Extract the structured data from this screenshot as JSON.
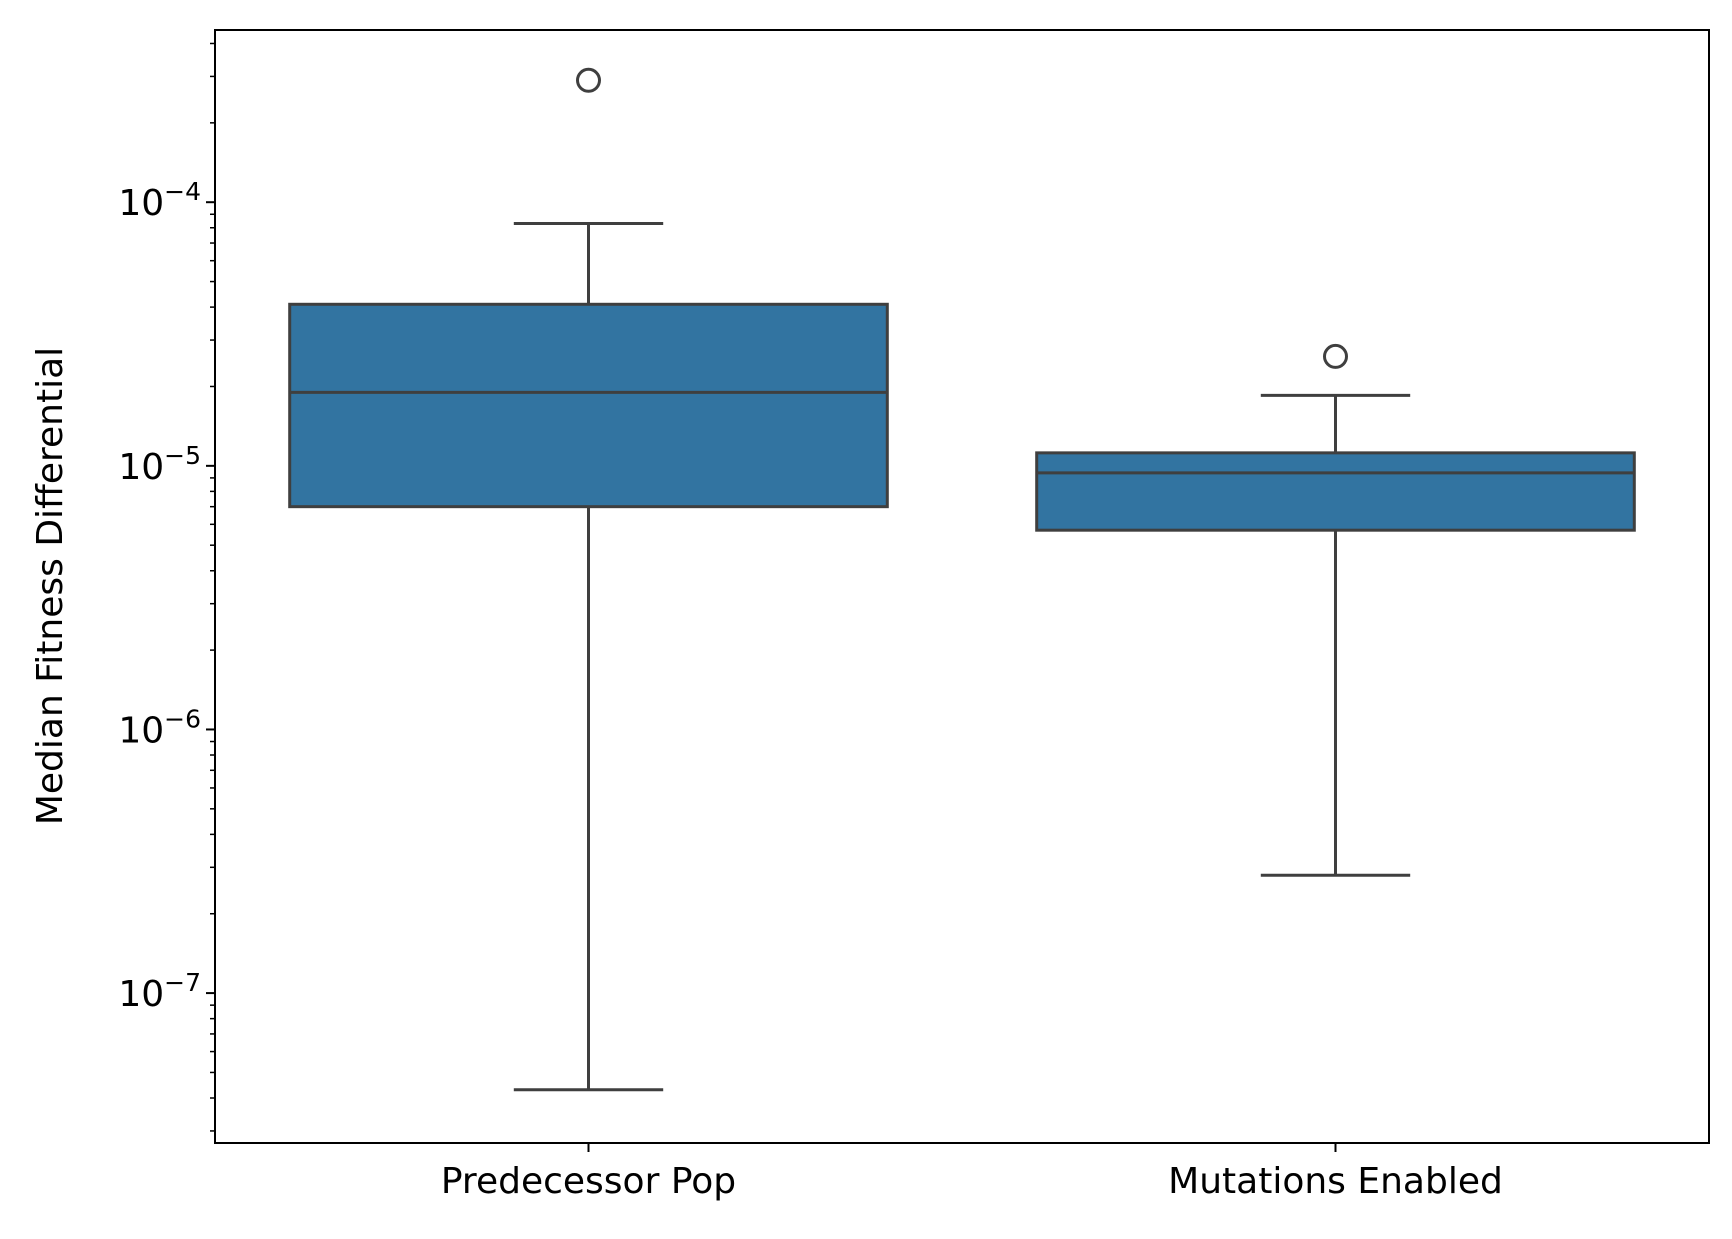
{
  "chart_data": {
    "type": "box",
    "title": "",
    "xlabel": "",
    "ylabel": "Median Fitness Differential",
    "yscale": "log",
    "ylim": [
      2.7e-08,
      0.00045
    ],
    "grid": false,
    "categories": [
      "Predecessor Pop",
      "Mutations Enabled"
    ],
    "boxes": [
      {
        "category": "Predecessor Pop",
        "whisker_low": 4.3e-08,
        "q1": 7e-06,
        "median": 1.9e-05,
        "q3": 4.1e-05,
        "whisker_high": 8.3e-05,
        "outliers": [
          0.00029
        ]
      },
      {
        "category": "Mutations Enabled",
        "whisker_low": 2.8e-07,
        "q1": 5.7e-06,
        "median": 9.4e-06,
        "q3": 1.12e-05,
        "whisker_high": 1.85e-05,
        "outliers": [
          2.6e-05
        ]
      }
    ],
    "yticks": [
      {
        "value": 1e-07,
        "base": "10",
        "exp": "−7"
      },
      {
        "value": 1e-06,
        "base": "10",
        "exp": "−6"
      },
      {
        "value": 1e-05,
        "base": "10",
        "exp": "−5"
      },
      {
        "value": 0.0001,
        "base": "10",
        "exp": "−4"
      }
    ],
    "colors": {
      "box_fill": "#3274a1",
      "box_line": "#3f3f3f",
      "axis": "#000000"
    }
  }
}
